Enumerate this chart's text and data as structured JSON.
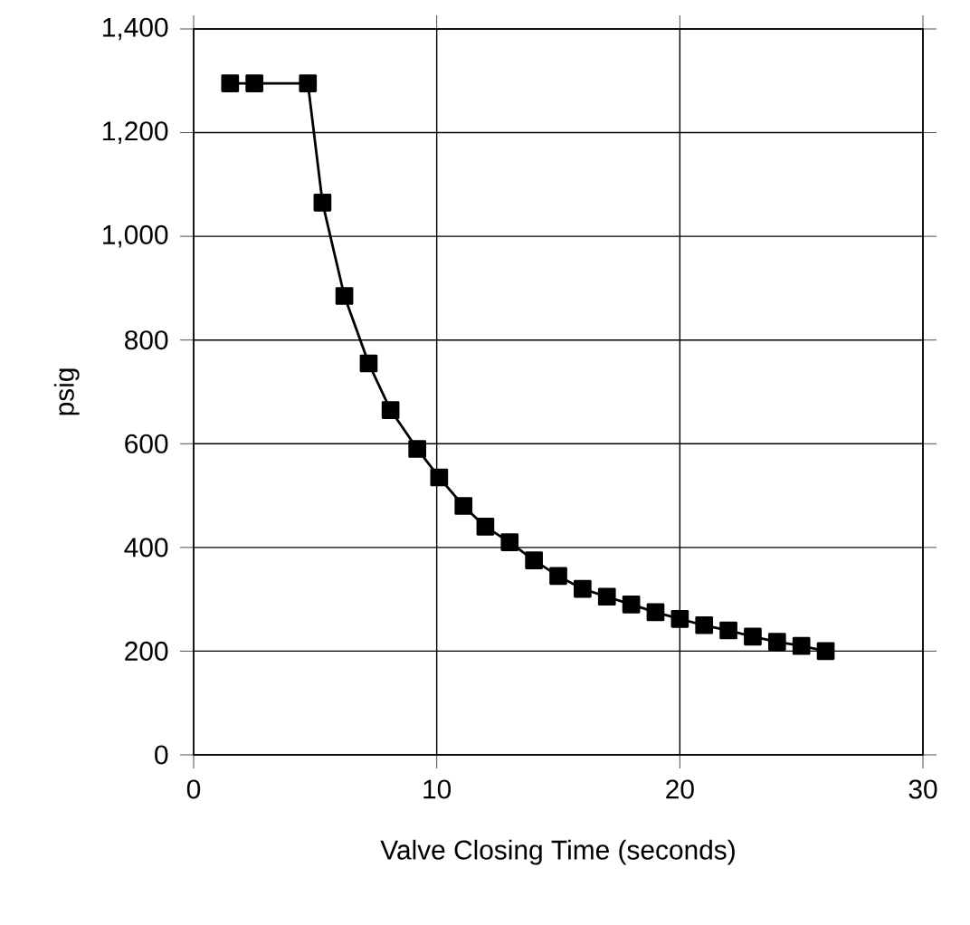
{
  "chart_data": {
    "type": "line",
    "xlabel": "Valve Closing Time (seconds)",
    "ylabel": "psig",
    "series": [
      {
        "color": "#000000",
        "x": [
          1.5,
          2.5,
          4.7,
          5.3,
          6.2,
          7.2,
          8.1,
          9.2,
          10.1,
          11.1,
          12,
          13,
          14,
          15,
          16,
          17,
          18,
          19,
          20,
          21,
          22,
          23,
          24,
          25,
          26
        ],
        "values": [
          1295,
          1295,
          1295,
          1065,
          885,
          755,
          665,
          590,
          535,
          480,
          440,
          410,
          375,
          345,
          320,
          305,
          290,
          275,
          262,
          250,
          240,
          228,
          218,
          210,
          200
        ]
      }
    ],
    "xlim": [
      0,
      30
    ],
    "xticks": [
      0,
      10,
      20,
      30
    ],
    "ylim": [
      0,
      1400
    ],
    "yticks": [
      0,
      {
        "value": 200,
        "label": "200"
      },
      {
        "value": 400,
        "label": "400"
      },
      {
        "value": 600,
        "label": "600"
      },
      {
        "value": 800,
        "label": "800"
      },
      {
        "value": 1000,
        "label": "1,000"
      },
      {
        "value": 1200,
        "label": "1,200"
      },
      {
        "value": 1400,
        "label": "1,400"
      }
    ],
    "grid": true,
    "marker": "square",
    "line_style": "solid"
  }
}
